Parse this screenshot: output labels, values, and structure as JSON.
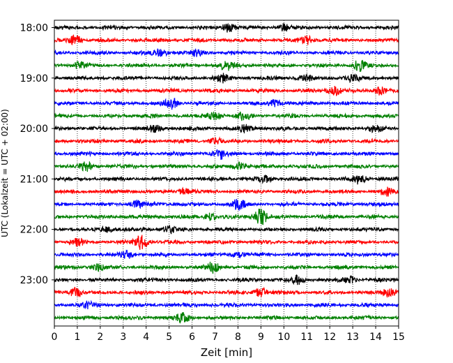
{
  "chart_data": {
    "type": "line",
    "title": "",
    "xlabel": "Zeit  [min]",
    "ylabel": "UTC (Lokalzeit = UTC + 02:00)",
    "xlim": [
      0,
      15
    ],
    "x_ticks": [
      "0",
      "1",
      "2",
      "3",
      "4",
      "5",
      "6",
      "7",
      "8",
      "9",
      "10",
      "11",
      "12",
      "13",
      "14",
      "15"
    ],
    "y_ticks": [
      "18:00",
      "19:00",
      "20:00",
      "21:00",
      "22:00",
      "23:00"
    ],
    "grid": {
      "vertical": true,
      "style": "dotted"
    },
    "trace_interval_min": 15,
    "start_time": "18:00",
    "color_cycle": [
      "#000000",
      "#ff0000",
      "#0000ff",
      "#008000"
    ],
    "traces": [
      {
        "time": "18:00",
        "events": [
          [
            7.6,
            1.8
          ],
          [
            10.0,
            1.3
          ]
        ]
      },
      {
        "time": "18:15",
        "events": [
          [
            0.9,
            2.2
          ],
          [
            11.0,
            1.6
          ]
        ]
      },
      {
        "time": "18:30",
        "events": [
          [
            4.6,
            1.6
          ],
          [
            6.2,
            1.2
          ]
        ]
      },
      {
        "time": "18:45",
        "events": [
          [
            7.5,
            2.2
          ],
          [
            13.3,
            2.4
          ],
          [
            1.1,
            1.3
          ]
        ]
      },
      {
        "time": "19:00",
        "events": [
          [
            7.3,
            1.6
          ],
          [
            10.9,
            1.3
          ],
          [
            13.0,
            1.3
          ]
        ]
      },
      {
        "time": "19:15",
        "events": [
          [
            12.2,
            1.9
          ],
          [
            14.2,
            1.7
          ]
        ]
      },
      {
        "time": "19:30",
        "events": [
          [
            5.1,
            2.3
          ],
          [
            9.6,
            1.3
          ]
        ]
      },
      {
        "time": "19:45",
        "events": [
          [
            7.0,
            1.6
          ],
          [
            8.2,
            1.5
          ]
        ]
      },
      {
        "time": "20:00",
        "events": [
          [
            4.4,
            1.4
          ],
          [
            8.3,
            1.5
          ],
          [
            14.0,
            1.3
          ]
        ]
      },
      {
        "time": "20:15",
        "events": [
          [
            7.0,
            1.2
          ]
        ]
      },
      {
        "time": "20:30",
        "events": [
          [
            7.2,
            2.3
          ]
        ]
      },
      {
        "time": "20:45",
        "events": [
          [
            1.4,
            1.9
          ],
          [
            8.1,
            1.6
          ]
        ]
      },
      {
        "time": "21:00",
        "events": [
          [
            13.3,
            2.0
          ],
          [
            9.2,
            1.4
          ]
        ]
      },
      {
        "time": "21:15",
        "events": [
          [
            14.5,
            1.7
          ],
          [
            5.7,
            1.2
          ]
        ]
      },
      {
        "time": "21:30",
        "events": [
          [
            8.0,
            2.1
          ],
          [
            3.6,
            1.4
          ]
        ]
      },
      {
        "time": "21:45",
        "events": [
          [
            9.0,
            3.6
          ],
          [
            6.8,
            1.5
          ]
        ]
      },
      {
        "time": "22:00",
        "events": [
          [
            2.3,
            1.4
          ],
          [
            5.0,
            1.4
          ]
        ]
      },
      {
        "time": "22:15",
        "events": [
          [
            3.8,
            3.3
          ],
          [
            1.0,
            1.3
          ]
        ]
      },
      {
        "time": "22:30",
        "events": [
          [
            3.2,
            1.5
          ],
          [
            8.0,
            1.2
          ]
        ]
      },
      {
        "time": "22:45",
        "events": [
          [
            6.9,
            2.4
          ],
          [
            1.9,
            1.4
          ]
        ]
      },
      {
        "time": "23:00",
        "events": [
          [
            10.6,
            1.6
          ],
          [
            12.9,
            1.4
          ]
        ]
      },
      {
        "time": "23:15",
        "events": [
          [
            0.9,
            1.9
          ],
          [
            9.0,
            2.0
          ],
          [
            14.6,
            1.6
          ]
        ]
      },
      {
        "time": "23:30",
        "events": [
          [
            1.5,
            1.2
          ]
        ]
      },
      {
        "time": "23:45",
        "events": [
          [
            5.6,
            1.9
          ]
        ]
      }
    ]
  }
}
